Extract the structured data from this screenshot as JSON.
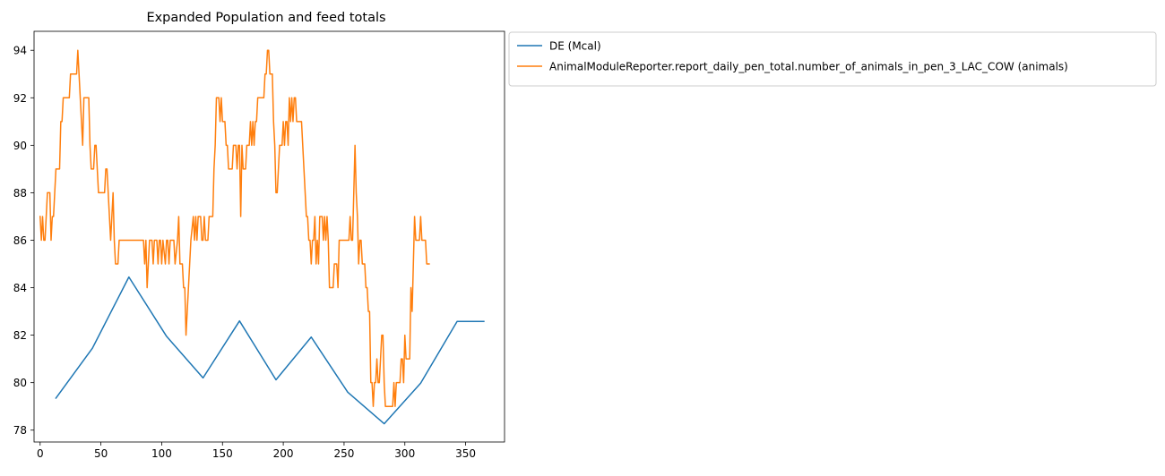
{
  "chart_data": {
    "type": "line",
    "title": "Expanded Population and feed totals",
    "xlabel": "",
    "ylabel": "",
    "xlim": [
      -5,
      382
    ],
    "ylim": [
      77.5,
      94.8
    ],
    "xticks": [
      0,
      50,
      100,
      150,
      200,
      250,
      300,
      350
    ],
    "yticks": [
      78,
      80,
      82,
      84,
      86,
      88,
      90,
      92,
      94
    ],
    "grid": false,
    "legend_position": "outside-top-right",
    "series": [
      {
        "name": "DE (Mcal)",
        "color": "#1f77b4",
        "points": [
          [
            13,
            79.35
          ],
          [
            43,
            81.45
          ],
          [
            73,
            84.45
          ],
          [
            104,
            81.95
          ],
          [
            134,
            80.2
          ],
          [
            164,
            82.6
          ],
          [
            194,
            80.12
          ],
          [
            223,
            81.92
          ],
          [
            253,
            79.6
          ],
          [
            283,
            78.27
          ],
          [
            313,
            79.98
          ],
          [
            343,
            82.58
          ],
          [
            365,
            82.58
          ]
        ]
      },
      {
        "name": "AnimalModuleReporter.report_daily_pen_total.number_of_animals_in_pen_3_LAC_COW (animals)",
        "color": "#ff7f0e",
        "points": [
          [
            0,
            87
          ],
          [
            1,
            86
          ],
          [
            2,
            87
          ],
          [
            3,
            86
          ],
          [
            4,
            86
          ],
          [
            5,
            87
          ],
          [
            6,
            88
          ],
          [
            8,
            88
          ],
          [
            9,
            86
          ],
          [
            10,
            87
          ],
          [
            11,
            87
          ],
          [
            12,
            88
          ],
          [
            13,
            89
          ],
          [
            16,
            89
          ],
          [
            17,
            91
          ],
          [
            18,
            91
          ],
          [
            19,
            92
          ],
          [
            24,
            92
          ],
          [
            25,
            93
          ],
          [
            29,
            93
          ],
          [
            30,
            93
          ],
          [
            31,
            94
          ],
          [
            32,
            93
          ],
          [
            33,
            92
          ],
          [
            34,
            91
          ],
          [
            35,
            90
          ],
          [
            36,
            92
          ],
          [
            40,
            92
          ],
          [
            41,
            90
          ],
          [
            42,
            89
          ],
          [
            44,
            89
          ],
          [
            45,
            90
          ],
          [
            46,
            90
          ],
          [
            47,
            89
          ],
          [
            48,
            88
          ],
          [
            53,
            88
          ],
          [
            54,
            89
          ],
          [
            55,
            89
          ],
          [
            56,
            88
          ],
          [
            57,
            87
          ],
          [
            58,
            86
          ],
          [
            59,
            87
          ],
          [
            60,
            88
          ],
          [
            61,
            86
          ],
          [
            62,
            85
          ],
          [
            64,
            85
          ],
          [
            65,
            86
          ],
          [
            80,
            86
          ],
          [
            85,
            86
          ],
          [
            86,
            85
          ],
          [
            87,
            86
          ],
          [
            88,
            84
          ],
          [
            89,
            85
          ],
          [
            90,
            86
          ],
          [
            92,
            86
          ],
          [
            93,
            85
          ],
          [
            94,
            86
          ],
          [
            96,
            86
          ],
          [
            97,
            85
          ],
          [
            98,
            86
          ],
          [
            99,
            86
          ],
          [
            100,
            85
          ],
          [
            101,
            86
          ],
          [
            103,
            85
          ],
          [
            104,
            86
          ],
          [
            105,
            86
          ],
          [
            106,
            85
          ],
          [
            107,
            86
          ],
          [
            110,
            86
          ],
          [
            111,
            85
          ],
          [
            113,
            86
          ],
          [
            114,
            87
          ],
          [
            115,
            85
          ],
          [
            117,
            85
          ],
          [
            118,
            84
          ],
          [
            119,
            84
          ],
          [
            120,
            82
          ],
          [
            121,
            83
          ],
          [
            122,
            84
          ],
          [
            123,
            85
          ],
          [
            124,
            86
          ],
          [
            126,
            87
          ],
          [
            127,
            86
          ],
          [
            128,
            87
          ],
          [
            129,
            86
          ],
          [
            130,
            87
          ],
          [
            132,
            87
          ],
          [
            133,
            86
          ],
          [
            134,
            86
          ],
          [
            135,
            87
          ],
          [
            136,
            86
          ],
          [
            138,
            86
          ],
          [
            139,
            87
          ],
          [
            142,
            87
          ],
          [
            143,
            89
          ],
          [
            144,
            90
          ],
          [
            145,
            92
          ],
          [
            147,
            92
          ],
          [
            148,
            91
          ],
          [
            149,
            92
          ],
          [
            150,
            91
          ],
          [
            152,
            91
          ],
          [
            153,
            90
          ],
          [
            154,
            90
          ],
          [
            155,
            89
          ],
          [
            158,
            89
          ],
          [
            159,
            90
          ],
          [
            161,
            90
          ],
          [
            162,
            89
          ],
          [
            163,
            90
          ],
          [
            164,
            90
          ],
          [
            165,
            87
          ],
          [
            166,
            90
          ],
          [
            167,
            89
          ],
          [
            169,
            89
          ],
          [
            170,
            90
          ],
          [
            172,
            90
          ],
          [
            173,
            91
          ],
          [
            174,
            90
          ],
          [
            175,
            91
          ],
          [
            176,
            90
          ],
          [
            177,
            91
          ],
          [
            178,
            91
          ],
          [
            179,
            92
          ],
          [
            184,
            92
          ],
          [
            185,
            93
          ],
          [
            186,
            93
          ],
          [
            187,
            94
          ],
          [
            188,
            94
          ],
          [
            189,
            93
          ],
          [
            191,
            93
          ],
          [
            192,
            91
          ],
          [
            193,
            90
          ],
          [
            194,
            88
          ],
          [
            195,
            88
          ],
          [
            196,
            89
          ],
          [
            197,
            90
          ],
          [
            199,
            90
          ],
          [
            200,
            91
          ],
          [
            201,
            90
          ],
          [
            202,
            91
          ],
          [
            203,
            91
          ],
          [
            204,
            90
          ],
          [
            205,
            92
          ],
          [
            206,
            91
          ],
          [
            207,
            92
          ],
          [
            208,
            91
          ],
          [
            209,
            92
          ],
          [
            210,
            92
          ],
          [
            211,
            91
          ],
          [
            215,
            91
          ],
          [
            216,
            90
          ],
          [
            217,
            89
          ],
          [
            218,
            88
          ],
          [
            219,
            87
          ],
          [
            220,
            87
          ],
          [
            221,
            86
          ],
          [
            222,
            86
          ],
          [
            223,
            85
          ],
          [
            224,
            86
          ],
          [
            225,
            86
          ],
          [
            226,
            87
          ],
          [
            227,
            85
          ],
          [
            228,
            86
          ],
          [
            229,
            85
          ],
          [
            230,
            87
          ],
          [
            232,
            87
          ],
          [
            233,
            86
          ],
          [
            234,
            87
          ],
          [
            235,
            86
          ],
          [
            236,
            87
          ],
          [
            237,
            86
          ],
          [
            238,
            84
          ],
          [
            241,
            84
          ],
          [
            242,
            85
          ],
          [
            244,
            85
          ],
          [
            245,
            84
          ],
          [
            246,
            86
          ],
          [
            254,
            86
          ],
          [
            255,
            87
          ],
          [
            256,
            86
          ],
          [
            257,
            86
          ],
          [
            258,
            88
          ],
          [
            259,
            90
          ],
          [
            260,
            88
          ],
          [
            261,
            87
          ],
          [
            262,
            85
          ],
          [
            263,
            86
          ],
          [
            264,
            86
          ],
          [
            265,
            85
          ],
          [
            267,
            85
          ],
          [
            268,
            84
          ],
          [
            269,
            84
          ],
          [
            270,
            83
          ],
          [
            271,
            83
          ],
          [
            272,
            80
          ],
          [
            273,
            80
          ],
          [
            274,
            79
          ],
          [
            275,
            80
          ],
          [
            276,
            80
          ],
          [
            277,
            81
          ],
          [
            278,
            80
          ],
          [
            279,
            80
          ],
          [
            280,
            81
          ],
          [
            281,
            82
          ],
          [
            282,
            82
          ],
          [
            283,
            80
          ],
          [
            284,
            79
          ],
          [
            290,
            79
          ],
          [
            291,
            80
          ],
          [
            292,
            79
          ],
          [
            293,
            80
          ],
          [
            296,
            80
          ],
          [
            297,
            81
          ],
          [
            298,
            81
          ],
          [
            299,
            80
          ],
          [
            300,
            82
          ],
          [
            301,
            81
          ],
          [
            304,
            81
          ],
          [
            305,
            84
          ],
          [
            306,
            83
          ],
          [
            307,
            85
          ],
          [
            308,
            87
          ],
          [
            309,
            86
          ],
          [
            312,
            86
          ],
          [
            313,
            87
          ],
          [
            314,
            86
          ],
          [
            317,
            86
          ],
          [
            318,
            85
          ],
          [
            320,
            85
          ]
        ]
      }
    ]
  }
}
